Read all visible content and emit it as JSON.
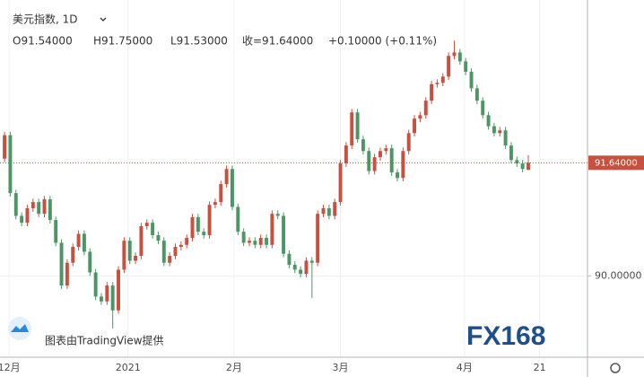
{
  "chart_data": {
    "type": "candlestick",
    "title": "美元指数, 1D",
    "ohlc_labels": [
      "O91.54000",
      "H91.75000",
      "L91.53000",
      "收=91.64000",
      "+0.10000 (+0.11%)"
    ],
    "watermark": "图表由TradingView提供",
    "logo": "FX168",
    "up_color": "#c8503f",
    "down_color": "#4c9665",
    "open": [
      91.7,
      92.04,
      91.2,
      90.87,
      90.77,
      90.98,
      91.07,
      90.9,
      91.11,
      90.81,
      90.48,
      89.86,
      90.19,
      90.42,
      90.61,
      90.35,
      90.05,
      89.7,
      89.63,
      89.86,
      89.5,
      90.09,
      90.51,
      90.22,
      90.29,
      90.72,
      90.77,
      90.59,
      90.51,
      90.19,
      90.29,
      90.42,
      90.45,
      90.55,
      90.85,
      90.64,
      90.59,
      91.03,
      91.07,
      91.33,
      91.55,
      91.0,
      90.64,
      90.48,
      90.51,
      90.45,
      90.55,
      90.45,
      90.9,
      90.87,
      90.32,
      90.16,
      90.09,
      90.03,
      90.22,
      90.19,
      90.9,
      90.98,
      90.87,
      91.07,
      91.63,
      91.89,
      92.37,
      91.98,
      91.81,
      91.52,
      91.72,
      91.81,
      91.85,
      91.5,
      91.42,
      91.81,
      92.07,
      92.28,
      92.33,
      92.54,
      92.78,
      92.8,
      92.89,
      93.19,
      93.24,
      93.11,
      92.96,
      92.72,
      92.54,
      92.33,
      92.17,
      92.07,
      92.11,
      91.89,
      91.68,
      91.63,
      91.54
    ],
    "high": [
      92.09,
      92.09,
      91.25,
      90.92,
      91.03,
      91.12,
      91.12,
      91.16,
      91.16,
      90.86,
      90.53,
      90.24,
      90.47,
      90.66,
      90.66,
      90.4,
      90.1,
      89.75,
      89.91,
      89.91,
      90.14,
      90.56,
      90.56,
      90.34,
      90.77,
      90.82,
      90.82,
      90.64,
      90.56,
      90.34,
      90.47,
      90.5,
      90.6,
      90.9,
      90.9,
      90.69,
      91.08,
      91.12,
      91.38,
      91.6,
      91.6,
      91.05,
      90.69,
      90.56,
      90.56,
      90.6,
      90.6,
      90.95,
      90.95,
      90.92,
      90.37,
      90.21,
      90.14,
      90.27,
      90.27,
      90.95,
      91.03,
      91.03,
      91.12,
      91.68,
      91.94,
      92.42,
      92.42,
      92.03,
      91.86,
      91.77,
      91.86,
      91.9,
      91.9,
      91.55,
      91.86,
      92.12,
      92.33,
      92.38,
      92.59,
      92.83,
      92.85,
      92.94,
      93.24,
      93.41,
      93.29,
      93.16,
      93.01,
      92.77,
      92.59,
      92.38,
      92.22,
      92.16,
      92.16,
      91.94,
      91.73,
      91.68,
      91.75
    ],
    "low": [
      91.65,
      91.15,
      90.82,
      90.72,
      90.72,
      90.93,
      90.85,
      90.85,
      90.76,
      90.43,
      89.81,
      89.81,
      90.14,
      90.37,
      90.3,
      90.0,
      89.65,
      89.58,
      89.58,
      89.24,
      89.45,
      90.04,
      90.17,
      90.17,
      90.24,
      90.67,
      90.54,
      90.46,
      90.14,
      90.14,
      90.24,
      90.37,
      90.4,
      90.5,
      90.59,
      90.54,
      90.54,
      90.98,
      91.02,
      91.28,
      90.95,
      90.59,
      90.43,
      90.43,
      90.4,
      90.4,
      90.4,
      90.4,
      90.82,
      90.27,
      90.11,
      90.04,
      89.98,
      89.98,
      89.68,
      90.14,
      90.85,
      90.82,
      90.82,
      91.02,
      91.58,
      91.84,
      91.93,
      91.76,
      91.47,
      91.47,
      91.67,
      91.76,
      91.45,
      91.37,
      91.37,
      91.76,
      92.02,
      92.23,
      92.28,
      92.49,
      92.73,
      92.75,
      92.84,
      93.14,
      93.06,
      92.91,
      92.67,
      92.49,
      92.28,
      92.12,
      92.02,
      92.02,
      91.84,
      91.63,
      91.58,
      91.5,
      91.53
    ],
    "close": [
      92.04,
      91.2,
      90.87,
      90.77,
      90.98,
      91.07,
      90.9,
      91.11,
      90.81,
      90.48,
      89.86,
      90.19,
      90.42,
      90.61,
      90.35,
      90.05,
      89.7,
      89.63,
      89.86,
      89.5,
      90.09,
      90.51,
      90.22,
      90.29,
      90.72,
      90.77,
      90.59,
      90.51,
      90.19,
      90.29,
      90.42,
      90.45,
      90.55,
      90.85,
      90.64,
      90.59,
      91.03,
      91.07,
      91.33,
      91.55,
      91.0,
      90.64,
      90.48,
      90.51,
      90.45,
      90.55,
      90.45,
      90.9,
      90.87,
      90.32,
      90.16,
      90.09,
      90.03,
      90.22,
      90.19,
      90.9,
      90.98,
      90.87,
      91.07,
      91.63,
      91.89,
      92.37,
      91.98,
      91.81,
      91.52,
      91.72,
      91.81,
      91.85,
      91.5,
      91.42,
      91.81,
      92.07,
      92.28,
      92.33,
      92.54,
      92.78,
      92.8,
      92.89,
      93.19,
      93.24,
      93.11,
      92.96,
      92.72,
      92.54,
      92.33,
      92.17,
      92.07,
      92.11,
      91.89,
      91.68,
      91.63,
      91.55,
      91.64
    ],
    "xlim": [
      -0.8,
      102.4
    ],
    "xticks": [
      {
        "value": 0.8,
        "label": "12月"
      },
      {
        "value": 21.7,
        "label": "2021"
      },
      {
        "value": 40.3,
        "label": "2月"
      },
      {
        "value": 59,
        "label": "3月"
      },
      {
        "value": 80.8,
        "label": "4月"
      },
      {
        "value": 94,
        "label": "21"
      }
    ],
    "ylim": [
      88.82,
      94.0
    ],
    "yticks": [
      {
        "value": 90,
        "label": "90.00000"
      }
    ],
    "last_price": {
      "value": 91.64,
      "label": "91.64000"
    },
    "grid": true
  }
}
